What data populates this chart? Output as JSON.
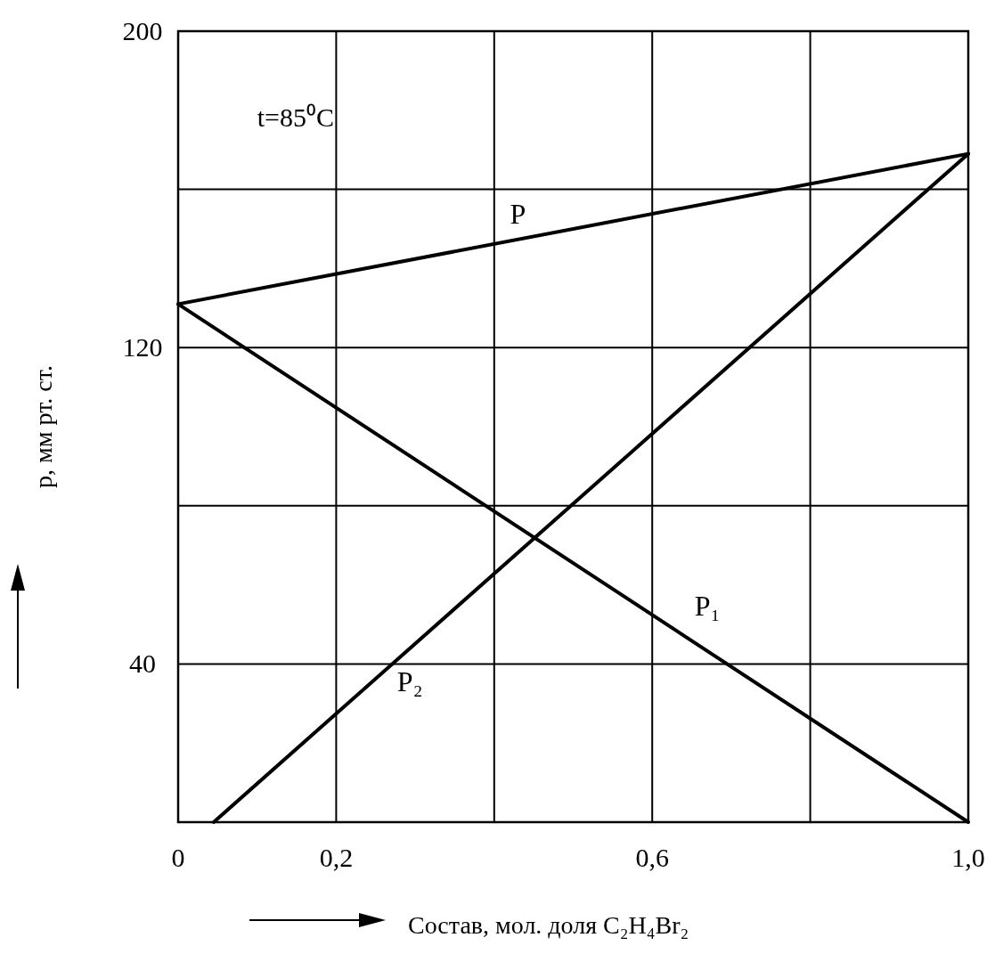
{
  "chart_data": {
    "type": "line",
    "xlabel": "Состав, мол. доля C₂H₄Br₂",
    "ylabel": "р, мм рт. ст.",
    "annotations": [
      "t=85⁰C"
    ],
    "xlim": [
      0,
      1
    ],
    "ylim": [
      0,
      200
    ],
    "xticks": [
      0,
      {
        "value": 0.2,
        "label": "0,2"
      },
      {
        "value": 0.4,
        "label": null
      },
      {
        "value": 0.6,
        "label": "0,6"
      },
      {
        "value": 0.8,
        "label": null
      },
      {
        "value": 1,
        "label": "1,0"
      }
    ],
    "yticks": [
      {
        "value": 0,
        "label": null
      },
      40,
      {
        "value": 80,
        "label": null
      },
      120,
      {
        "value": 160,
        "label": null
      },
      200
    ],
    "grid": true,
    "marker": "none",
    "line_style": "solid",
    "series": [
      {
        "name": "P",
        "color": "#000000",
        "x": [
          0,
          1
        ],
        "values": [
          131,
          169
        ]
      },
      {
        "name": "P₁",
        "color": "#000000",
        "x": [
          0,
          1
        ],
        "values": [
          131,
          0
        ]
      },
      {
        "name": "P₂",
        "color": "#000000",
        "x": [
          0.045,
          1
        ],
        "values": [
          0,
          169
        ]
      }
    ]
  }
}
